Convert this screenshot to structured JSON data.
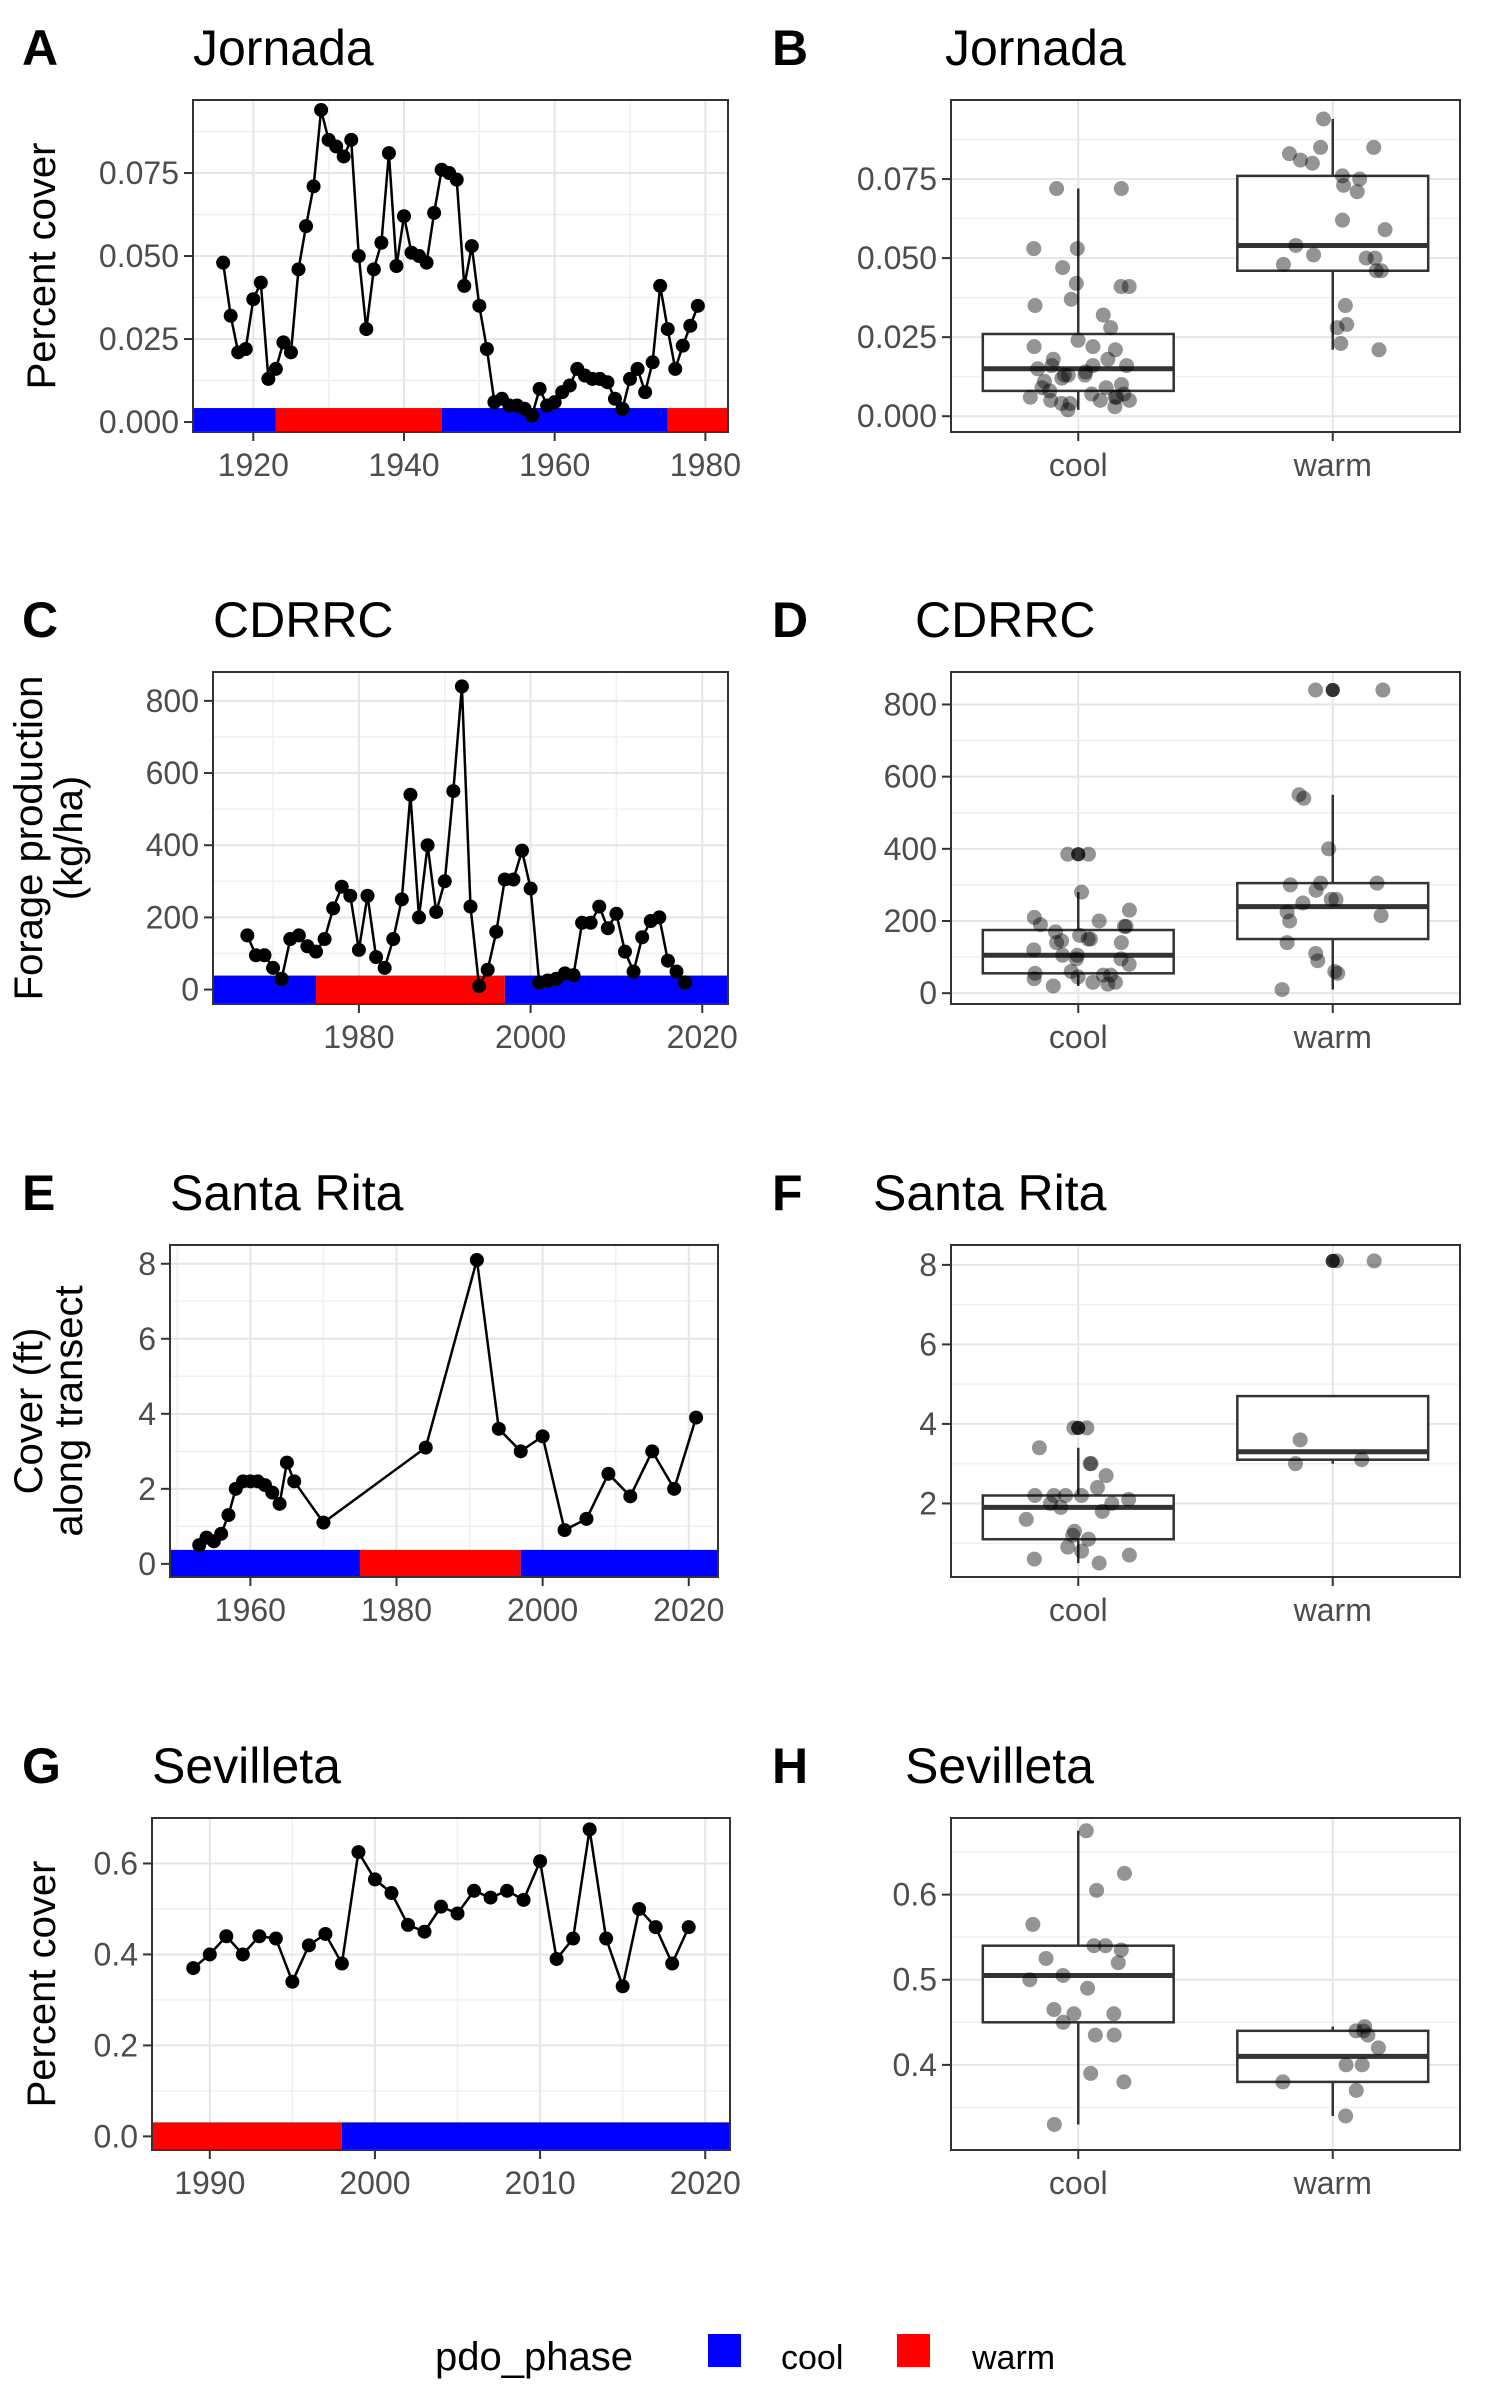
{
  "legend": {
    "title": "pdo_phase",
    "items": [
      {
        "label": "cool",
        "color": "#0000ff"
      },
      {
        "label": "warm",
        "color": "#ff0000"
      }
    ]
  },
  "chart_data": [
    {
      "tag": "A",
      "type": "line",
      "title": "Jornada",
      "ylabel": [
        "Percent cover"
      ],
      "xlabel": "",
      "xlim": [
        1912,
        1983
      ],
      "ylim": [
        -0.003,
        0.097
      ],
      "xticks": [
        1920,
        1940,
        1960,
        1980
      ],
      "yticks": [
        0.0,
        0.025,
        0.05,
        0.075
      ],
      "ytick_labels": [
        "0.000",
        "0.025",
        "0.050",
        "0.075"
      ],
      "phase_bars": [
        {
          "start": 1912,
          "end": 1923,
          "phase": "cool"
        },
        {
          "start": 1923,
          "end": 1945,
          "phase": "warm"
        },
        {
          "start": 1945,
          "end": 1975,
          "phase": "cool"
        },
        {
          "start": 1975,
          "end": 1983,
          "phase": "warm"
        }
      ],
      "x": [
        1916,
        1917,
        1918,
        1919,
        1920,
        1921,
        1922,
        1923,
        1924,
        1925,
        1926,
        1927,
        1928,
        1929,
        1930,
        1931,
        1932,
        1933,
        1934,
        1935,
        1936,
        1937,
        1938,
        1939,
        1940,
        1941,
        1942,
        1943,
        1944,
        1945,
        1946,
        1947,
        1948,
        1949,
        1950,
        1951,
        1952,
        1953,
        1954,
        1955,
        1956,
        1957,
        1958,
        1959,
        1960,
        1961,
        1962,
        1963,
        1964,
        1965,
        1966,
        1967,
        1968,
        1969,
        1970,
        1971,
        1972,
        1973,
        1974,
        1975,
        1976,
        1977,
        1978,
        1979
      ],
      "y": [
        0.048,
        0.032,
        0.021,
        0.022,
        0.037,
        0.042,
        0.013,
        0.016,
        0.024,
        0.021,
        0.046,
        0.059,
        0.071,
        0.094,
        0.085,
        0.083,
        0.08,
        0.085,
        0.05,
        0.028,
        0.046,
        0.054,
        0.081,
        0.047,
        0.062,
        0.051,
        0.05,
        0.048,
        0.063,
        0.076,
        0.075,
        0.073,
        0.041,
        0.053,
        0.035,
        0.022,
        0.006,
        0.007,
        0.005,
        0.005,
        0.004,
        0.002,
        0.01,
        0.005,
        0.006,
        0.009,
        0.011,
        0.016,
        0.014,
        0.013,
        0.013,
        0.012,
        0.007,
        0.004,
        0.013,
        0.016,
        0.009,
        0.018,
        0.041,
        0.028,
        0.016,
        0.023,
        0.029,
        0.035
      ]
    },
    {
      "tag": "B",
      "type": "box",
      "title": "Jornada",
      "ylim": [
        -0.005,
        0.1
      ],
      "yticks": [
        0.0,
        0.025,
        0.05,
        0.075
      ],
      "ytick_labels": [
        "0.000",
        "0.025",
        "0.050",
        "0.075"
      ],
      "categories": [
        "cool",
        "warm"
      ],
      "boxes": [
        {
          "name": "cool",
          "min": 0.002,
          "q1": 0.008,
          "median": 0.015,
          "q3": 0.026,
          "max": 0.072,
          "outliers": [],
          "points": [
            0.002,
            0.003,
            0.004,
            0.004,
            0.005,
            0.005,
            0.005,
            0.006,
            0.006,
            0.006,
            0.007,
            0.007,
            0.008,
            0.009,
            0.009,
            0.01,
            0.011,
            0.012,
            0.013,
            0.013,
            0.013,
            0.014,
            0.015,
            0.016,
            0.016,
            0.016,
            0.018,
            0.018,
            0.021,
            0.022,
            0.022,
            0.024,
            0.028,
            0.032,
            0.035,
            0.037,
            0.041,
            0.041,
            0.042,
            0.047,
            0.053,
            0.053,
            0.072,
            0.072
          ]
        },
        {
          "name": "warm",
          "min": 0.021,
          "q1": 0.046,
          "median": 0.054,
          "q3": 0.076,
          "max": 0.094,
          "outliers": [],
          "points": [
            0.021,
            0.023,
            0.028,
            0.029,
            0.035,
            0.046,
            0.046,
            0.048,
            0.05,
            0.05,
            0.051,
            0.054,
            0.059,
            0.062,
            0.071,
            0.073,
            0.075,
            0.076,
            0.08,
            0.081,
            0.083,
            0.085,
            0.085,
            0.094
          ]
        }
      ]
    },
    {
      "tag": "C",
      "type": "line",
      "title": "CDRRC",
      "ylabel": [
        "Forage production",
        "(kg/ha)"
      ],
      "xlabel": "",
      "xlim": [
        1963,
        2023
      ],
      "ylim": [
        -40,
        880
      ],
      "xticks": [
        1980,
        2000,
        2020
      ],
      "yticks": [
        0,
        200,
        400,
        600,
        800
      ],
      "ytick_labels": [
        "0",
        "200",
        "400",
        "600",
        "800"
      ],
      "phase_bars": [
        {
          "start": 1963,
          "end": 1975,
          "phase": "cool"
        },
        {
          "start": 1975,
          "end": 1997,
          "phase": "warm"
        },
        {
          "start": 1997,
          "end": 2023,
          "phase": "cool"
        }
      ],
      "x": [
        1967,
        1968,
        1969,
        1970,
        1971,
        1972,
        1973,
        1974,
        1975,
        1976,
        1977,
        1978,
        1979,
        1980,
        1981,
        1982,
        1983,
        1984,
        1985,
        1986,
        1987,
        1988,
        1989,
        1990,
        1991,
        1992,
        1993,
        1994,
        1995,
        1996,
        1997,
        1998,
        1999,
        2000,
        2001,
        2002,
        2003,
        2004,
        2005,
        2006,
        2007,
        2008,
        2009,
        2010,
        2011,
        2012,
        2013,
        2014,
        2015,
        2016,
        2017,
        2018
      ],
      "y": [
        150,
        95,
        95,
        60,
        30,
        140,
        150,
        120,
        105,
        140,
        225,
        285,
        260,
        110,
        260,
        90,
        60,
        140,
        250,
        540,
        200,
        400,
        215,
        300,
        550,
        840,
        230,
        10,
        55,
        160,
        305,
        305,
        385,
        280,
        20,
        25,
        30,
        45,
        40,
        185,
        185,
        230,
        170,
        210,
        105,
        50,
        145,
        190,
        200,
        80,
        50,
        20
      ]
    },
    {
      "tag": "D",
      "type": "box",
      "title": "CDRRC",
      "ylim": [
        -30,
        890
      ],
      "yticks": [
        0,
        200,
        400,
        600,
        800
      ],
      "ytick_labels": [
        "0",
        "200",
        "400",
        "600",
        "800"
      ],
      "categories": [
        "cool",
        "warm"
      ],
      "boxes": [
        {
          "name": "cool",
          "min": 20,
          "q1": 55,
          "median": 105,
          "q3": 175,
          "max": 280,
          "outliers": [
            385,
            385
          ],
          "points": [
            20,
            25,
            30,
            30,
            40,
            45,
            50,
            50,
            55,
            60,
            80,
            95,
            95,
            105,
            105,
            120,
            140,
            140,
            145,
            150,
            150,
            160,
            170,
            185,
            185,
            190,
            200,
            210,
            230,
            280,
            385,
            385
          ]
        },
        {
          "name": "warm",
          "min": 10,
          "q1": 150,
          "median": 240,
          "q3": 305,
          "max": 550,
          "outliers": [
            840,
            840
          ],
          "points": [
            10,
            55,
            60,
            90,
            110,
            140,
            200,
            215,
            225,
            250,
            260,
            260,
            285,
            300,
            305,
            305,
            400,
            540,
            550,
            840,
            840
          ]
        }
      ]
    },
    {
      "tag": "E",
      "type": "line",
      "title": "Santa Rita",
      "ylabel": [
        "Cover (ft)",
        "along transect"
      ],
      "xlabel": "",
      "xlim": [
        1949,
        2024
      ],
      "ylim": [
        -0.35,
        8.5
      ],
      "xticks": [
        1960,
        1980,
        2000,
        2020
      ],
      "yticks": [
        0,
        2,
        4,
        6,
        8
      ],
      "ytick_labels": [
        "0",
        "2",
        "4",
        "6",
        "8"
      ],
      "phase_bars": [
        {
          "start": 1949,
          "end": 1975,
          "phase": "cool"
        },
        {
          "start": 1975,
          "end": 1997,
          "phase": "warm"
        },
        {
          "start": 1997,
          "end": 2024,
          "phase": "cool"
        }
      ],
      "x": [
        1953,
        1954,
        1955,
        1956,
        1957,
        1958,
        1959,
        1960,
        1961,
        1962,
        1963,
        1964,
        1965,
        1966,
        1970,
        1984,
        1991,
        1994,
        1997,
        2000,
        2003,
        2006,
        2009,
        2012,
        2015,
        2018,
        2021
      ],
      "y": [
        0.5,
        0.7,
        0.6,
        0.8,
        1.3,
        2.0,
        2.2,
        2.2,
        2.2,
        2.1,
        1.9,
        1.6,
        2.7,
        2.2,
        1.1,
        3.1,
        8.1,
        3.6,
        3.0,
        3.4,
        0.9,
        1.2,
        2.4,
        1.8,
        3.0,
        2.0,
        3.9
      ]
    },
    {
      "tag": "F",
      "type": "box",
      "title": "Santa Rita",
      "ylim": [
        0.15,
        8.5
      ],
      "yticks": [
        2,
        4,
        6,
        8
      ],
      "ytick_labels": [
        "2",
        "4",
        "6",
        "8"
      ],
      "categories": [
        "cool",
        "warm"
      ],
      "boxes": [
        {
          "name": "cool",
          "min": 0.5,
          "q1": 1.1,
          "median": 1.9,
          "q3": 2.2,
          "max": 3.4,
          "outliers": [
            3.9,
            3.9
          ],
          "points": [
            0.5,
            0.6,
            0.7,
            0.8,
            0.9,
            1.1,
            1.2,
            1.3,
            1.6,
            1.8,
            1.9,
            2.0,
            2.0,
            2.1,
            2.2,
            2.2,
            2.2,
            2.2,
            2.4,
            2.7,
            3.0,
            3.0,
            3.4,
            3.9,
            3.9
          ]
        },
        {
          "name": "warm",
          "min": 3.0,
          "q1": 3.1,
          "median": 3.3,
          "q3": 4.7,
          "max": 4.7,
          "outliers": [
            8.1,
            8.1
          ],
          "points": [
            3.0,
            3.1,
            3.6,
            8.1,
            8.1
          ]
        }
      ]
    },
    {
      "tag": "G",
      "type": "line",
      "title": "Sevilleta",
      "ylabel": [
        "Percent cover"
      ],
      "xlabel": "",
      "xlim": [
        1986.5,
        2021.5
      ],
      "ylim": [
        -0.03,
        0.7
      ],
      "xticks": [
        1990,
        2000,
        2010,
        2020
      ],
      "yticks": [
        0.0,
        0.2,
        0.4,
        0.6
      ],
      "ytick_labels": [
        "0.0",
        "0.2",
        "0.4",
        "0.6"
      ],
      "phase_bars": [
        {
          "start": 1986.5,
          "end": 1998,
          "phase": "warm"
        },
        {
          "start": 1998,
          "end": 2021.5,
          "phase": "cool"
        }
      ],
      "x": [
        1989,
        1990,
        1991,
        1992,
        1993,
        1994,
        1995,
        1996,
        1997,
        1998,
        1999,
        2000,
        2001,
        2002,
        2003,
        2004,
        2005,
        2006,
        2007,
        2008,
        2009,
        2010,
        2011,
        2012,
        2013,
        2014,
        2015,
        2016,
        2017,
        2018,
        2019
      ],
      "y": [
        0.37,
        0.4,
        0.44,
        0.4,
        0.44,
        0.435,
        0.34,
        0.42,
        0.445,
        0.38,
        0.625,
        0.565,
        0.535,
        0.465,
        0.45,
        0.505,
        0.49,
        0.54,
        0.525,
        0.54,
        0.52,
        0.605,
        0.39,
        0.435,
        0.675,
        0.435,
        0.33,
        0.5,
        0.46,
        0.38,
        0.46
      ]
    },
    {
      "tag": "H",
      "type": "box",
      "title": "Sevilleta",
      "ylim": [
        0.3,
        0.69
      ],
      "yticks": [
        0.4,
        0.5,
        0.6
      ],
      "ytick_labels": [
        "0.4",
        "0.5",
        "0.6"
      ],
      "categories": [
        "cool",
        "warm"
      ],
      "boxes": [
        {
          "name": "cool",
          "min": 0.33,
          "q1": 0.45,
          "median": 0.505,
          "q3": 0.54,
          "max": 0.675,
          "outliers": [],
          "points": [
            0.33,
            0.38,
            0.39,
            0.435,
            0.435,
            0.45,
            0.46,
            0.46,
            0.465,
            0.49,
            0.5,
            0.505,
            0.52,
            0.525,
            0.535,
            0.54,
            0.54,
            0.565,
            0.605,
            0.625,
            0.675
          ]
        },
        {
          "name": "warm",
          "min": 0.34,
          "q1": 0.38,
          "median": 0.41,
          "q3": 0.44,
          "max": 0.445,
          "outliers": [],
          "points": [
            0.34,
            0.37,
            0.38,
            0.4,
            0.4,
            0.42,
            0.435,
            0.44,
            0.44,
            0.445
          ]
        }
      ]
    }
  ]
}
